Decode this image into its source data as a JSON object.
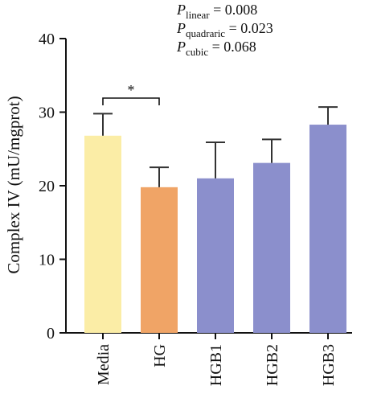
{
  "chart_data": {
    "type": "bar",
    "title": "",
    "xlabel": "",
    "ylabel": "Complex IV (mU/mgprot)",
    "ylim": [
      0,
      40
    ],
    "yticks": [
      0,
      10,
      20,
      30,
      40
    ],
    "categories": [
      "Media",
      "HG",
      "HGB1",
      "HGB2",
      "HGB3"
    ],
    "values": [
      26.8,
      19.8,
      21.0,
      23.1,
      28.3
    ],
    "errors": [
      3.0,
      2.7,
      4.9,
      3.2,
      2.4
    ],
    "colors": [
      "#fbeda6",
      "#f0a466",
      "#8b8fcc",
      "#8b8fcc",
      "#8b8fcc"
    ],
    "significance": [
      {
        "from": "Media",
        "to": "HG",
        "label": "*"
      }
    ],
    "annotations": [
      {
        "main": "P",
        "sub": "linear",
        "rest": " = 0.008"
      },
      {
        "main": "P",
        "sub": "quadraric",
        "rest": " = 0.023"
      },
      {
        "main": "P",
        "sub": "cubic",
        "rest": " = 0.068"
      }
    ],
    "grid": false
  }
}
